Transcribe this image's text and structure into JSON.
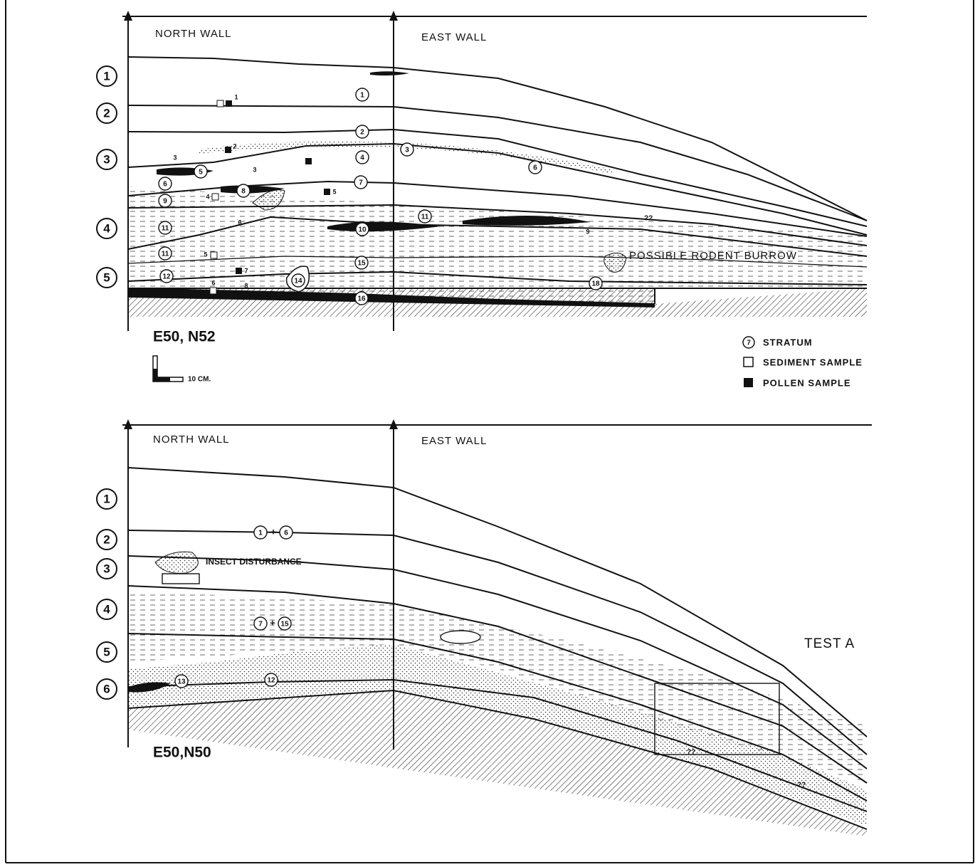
{
  "top": {
    "north_wall": "NORTH WALL",
    "east_wall": "EAST WALL",
    "levels": [
      "1",
      "2",
      "3",
      "4",
      "5"
    ],
    "strata": [
      "1",
      "2",
      "3",
      "4",
      "5",
      "6",
      "6",
      "7",
      "8",
      "9",
      "10",
      "11",
      "11",
      "11",
      "12",
      "14",
      "15",
      "16",
      "18"
    ],
    "samples": [
      "1",
      "2",
      "3",
      "3",
      "4",
      "5",
      "6",
      "7",
      "8",
      "9",
      "5",
      "6"
    ],
    "rodent": "POSSIBLE RODENT BURROW",
    "uncertain": "??",
    "location": "E50, N52",
    "scale": "10 CM.",
    "legend": {
      "stratum_symbol": "7",
      "stratum": "STRATUM",
      "sediment": "SEDIMENT SAMPLE",
      "pollen": "POLLEN SAMPLE"
    }
  },
  "bottom": {
    "north_wall": "NORTH WALL",
    "east_wall": "EAST WALL",
    "levels": [
      "1",
      "2",
      "3",
      "4",
      "5",
      "6"
    ],
    "strata": [
      "1",
      "6",
      "7",
      "15",
      "12",
      "13"
    ],
    "plus": [
      "+",
      "+"
    ],
    "insect": "INSECT DISTURBANCE",
    "uncertain": [
      "??",
      "??"
    ],
    "test": "TEST A",
    "location": "E50,N50"
  }
}
